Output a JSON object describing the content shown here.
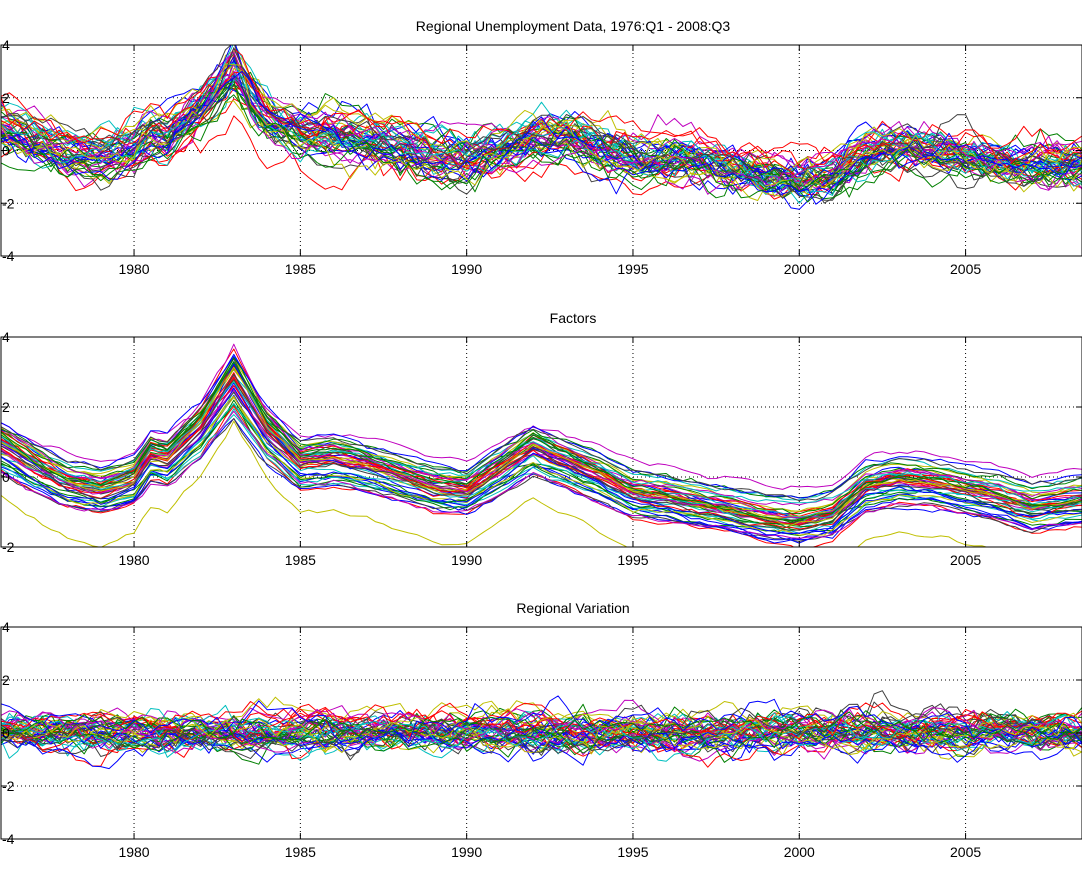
{
  "chart_data": [
    {
      "type": "line",
      "title": "Regional Unemployment Data, 1976:Q1 - 2008:Q3",
      "xlim": [
        1976,
        2008.5
      ],
      "ylim": [
        -4,
        4
      ],
      "xticks": [
        1980,
        1985,
        1990,
        1995,
        2000,
        2005
      ],
      "yticks": [
        -4,
        -2,
        0,
        2,
        4
      ],
      "grid": true,
      "n_series": 51,
      "mean_path": {
        "x": [
          1976,
          1977,
          1978,
          1979,
          1980,
          1980.5,
          1981,
          1982,
          1983,
          1984,
          1985,
          1986,
          1987,
          1988,
          1989,
          1990,
          1991,
          1992,
          1993,
          1994,
          1995,
          1996,
          1997,
          1998,
          1999,
          2000,
          2001,
          2002,
          2003,
          2004,
          2005,
          2006,
          2007,
          2008.5
        ],
        "y": [
          0.8,
          0.3,
          -0.2,
          -0.4,
          0.0,
          0.6,
          0.5,
          1.5,
          2.8,
          1.2,
          0.5,
          0.4,
          0.3,
          0.1,
          -0.3,
          -0.5,
          -0.1,
          0.4,
          0.5,
          0.0,
          -0.4,
          -0.4,
          -0.5,
          -0.8,
          -1.0,
          -1.2,
          -1.0,
          -0.2,
          0.1,
          0.0,
          -0.3,
          -0.5,
          -0.6,
          -0.5
        ]
      },
      "spread": 0.7,
      "noise": 0.25
    },
    {
      "type": "line",
      "title": "Factors",
      "xlim": [
        1976,
        2008.5
      ],
      "ylim": [
        -2,
        4
      ],
      "xticks": [
        1980,
        1985,
        1990,
        1995,
        2000,
        2005
      ],
      "yticks": [
        -2,
        0,
        2,
        4
      ],
      "grid": true,
      "n_series": 51,
      "mean_path": {
        "x": [
          1976,
          1977,
          1978,
          1979,
          1980,
          1980.5,
          1981,
          1982,
          1983,
          1984,
          1985,
          1986,
          1987,
          1988,
          1989,
          1990,
          1991,
          1992,
          1993,
          1994,
          1995,
          1996,
          1997,
          1998,
          1999,
          2000,
          2001,
          2002,
          2003,
          2004,
          2005,
          2006,
          2007,
          2008.5
        ],
        "y": [
          0.9,
          0.3,
          -0.2,
          -0.4,
          -0.1,
          0.6,
          0.5,
          1.4,
          2.8,
          1.3,
          0.4,
          0.5,
          0.3,
          0.0,
          -0.3,
          -0.4,
          0.2,
          0.8,
          0.4,
          0.0,
          -0.5,
          -0.6,
          -0.8,
          -1.0,
          -1.2,
          -1.3,
          -1.1,
          -0.3,
          -0.1,
          -0.2,
          -0.4,
          -0.6,
          -0.9,
          -0.7
        ]
      },
      "spread": 0.7,
      "noise": 0.04
    },
    {
      "type": "line",
      "title": "Regional Variation",
      "xlim": [
        1976,
        2008.5
      ],
      "ylim": [
        -4,
        4
      ],
      "xticks": [
        1980,
        1985,
        1990,
        1995,
        2000,
        2005
      ],
      "yticks": [
        -4,
        -2,
        0,
        2,
        4
      ],
      "grid": true,
      "n_series": 51,
      "mean_path": {
        "x": [
          1976,
          2008.5
        ],
        "y": [
          0.0,
          0.0
        ]
      },
      "spread": 0.3,
      "noise": 0.22
    }
  ],
  "colors": [
    "#0000ff",
    "#008000",
    "#ff0000",
    "#00bfbf",
    "#bf00bf",
    "#bfbf00",
    "#404040"
  ]
}
